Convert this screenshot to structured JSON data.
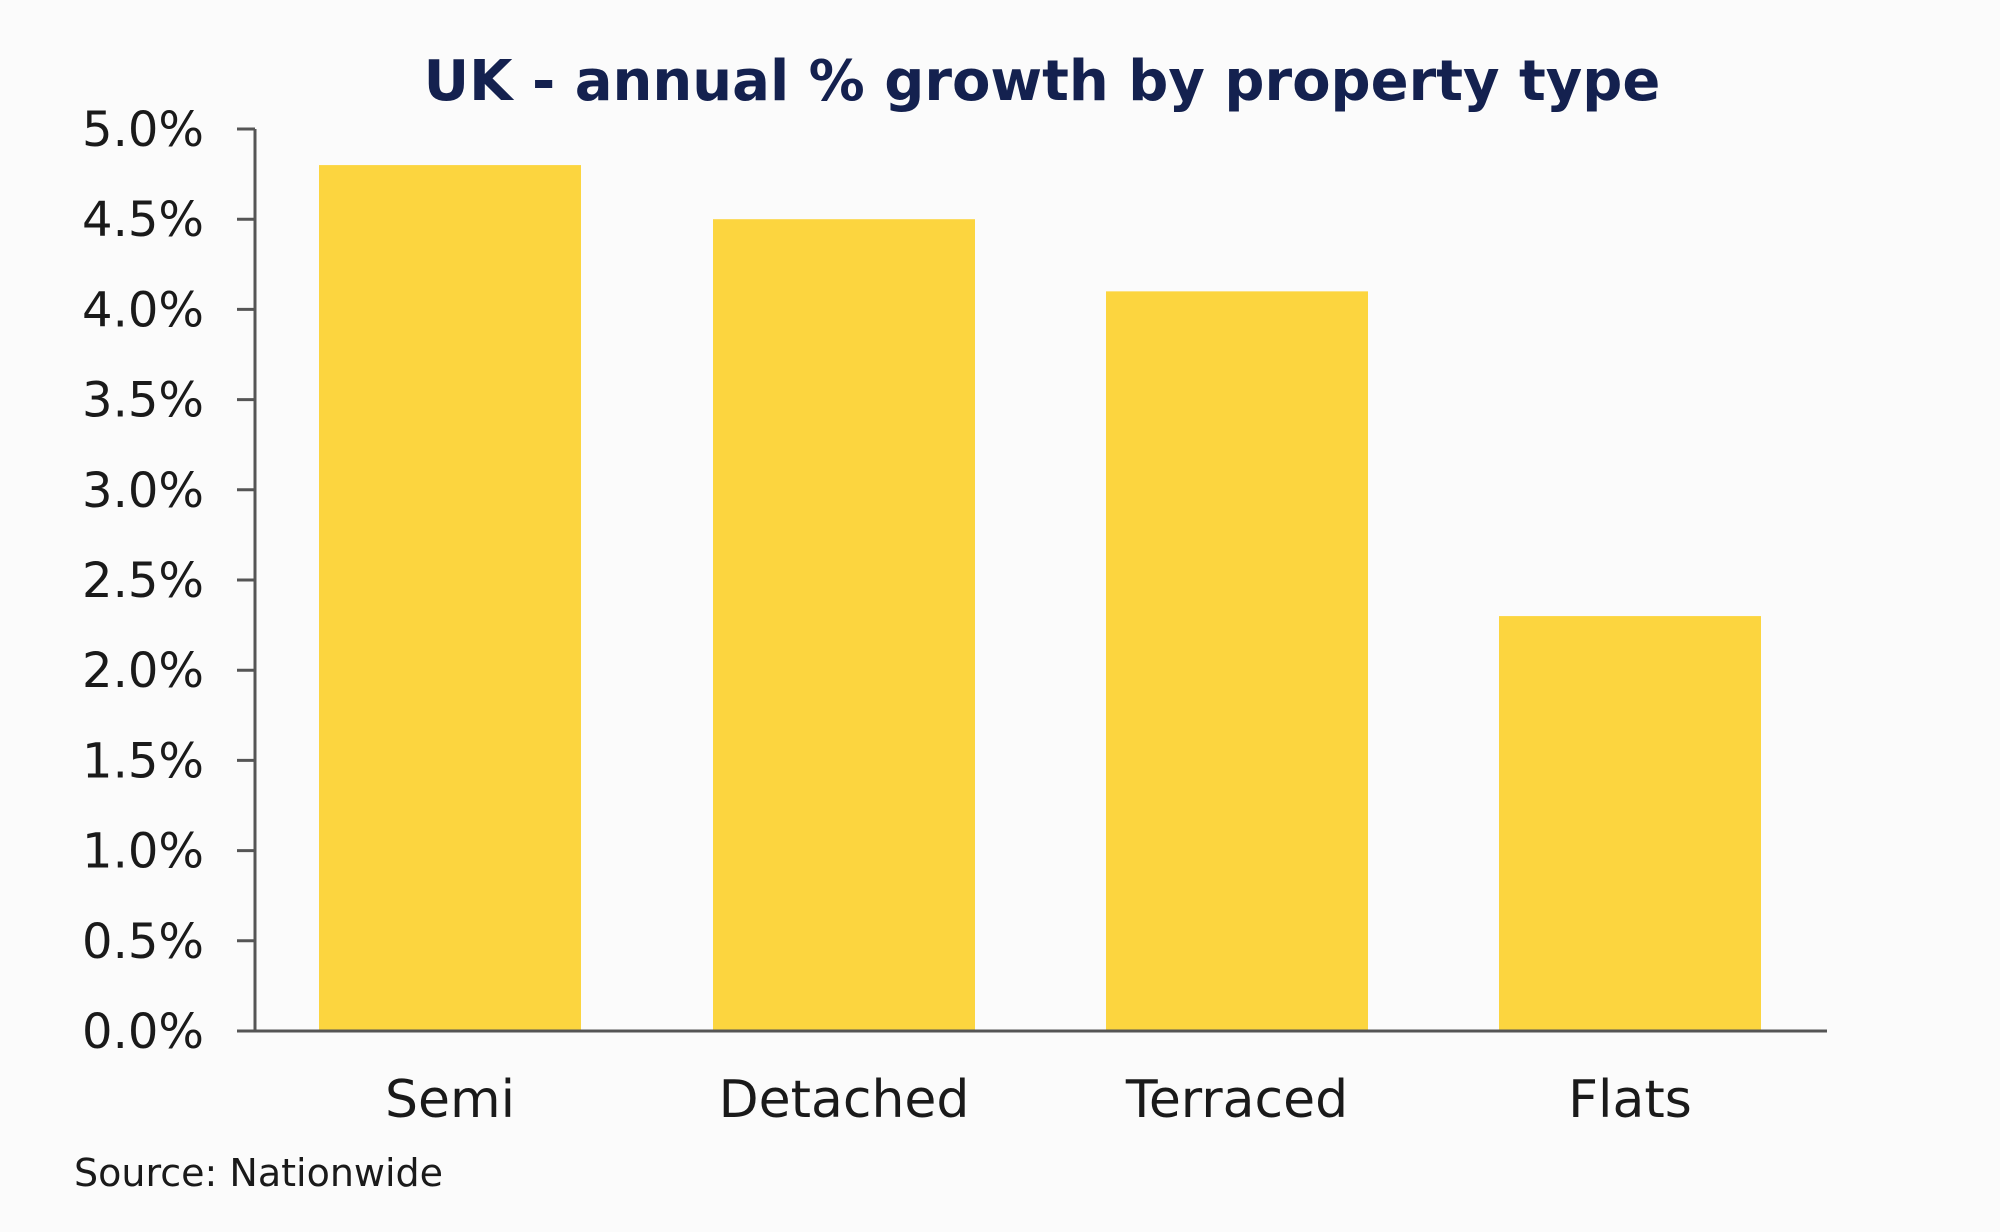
{
  "chart_data": {
    "type": "bar",
    "title": "UK - annual % growth by property type",
    "categories": [
      "Semi",
      "Detached",
      "Terraced",
      "Flats"
    ],
    "values": [
      4.8,
      4.5,
      4.1,
      2.3
    ],
    "ylim": [
      0,
      5
    ],
    "yticks": [
      "0.0%",
      "0.5%",
      "1.0%",
      "1.5%",
      "2.0%",
      "2.5%",
      "3.0%",
      "3.5%",
      "4.0%",
      "4.5%",
      "5.0%"
    ],
    "xlabel": "",
    "ylabel": "",
    "grid": false,
    "legend": "none",
    "bar_color": "#fcd53f",
    "title_color": "#14214f",
    "source": "Source: Nationwide"
  }
}
